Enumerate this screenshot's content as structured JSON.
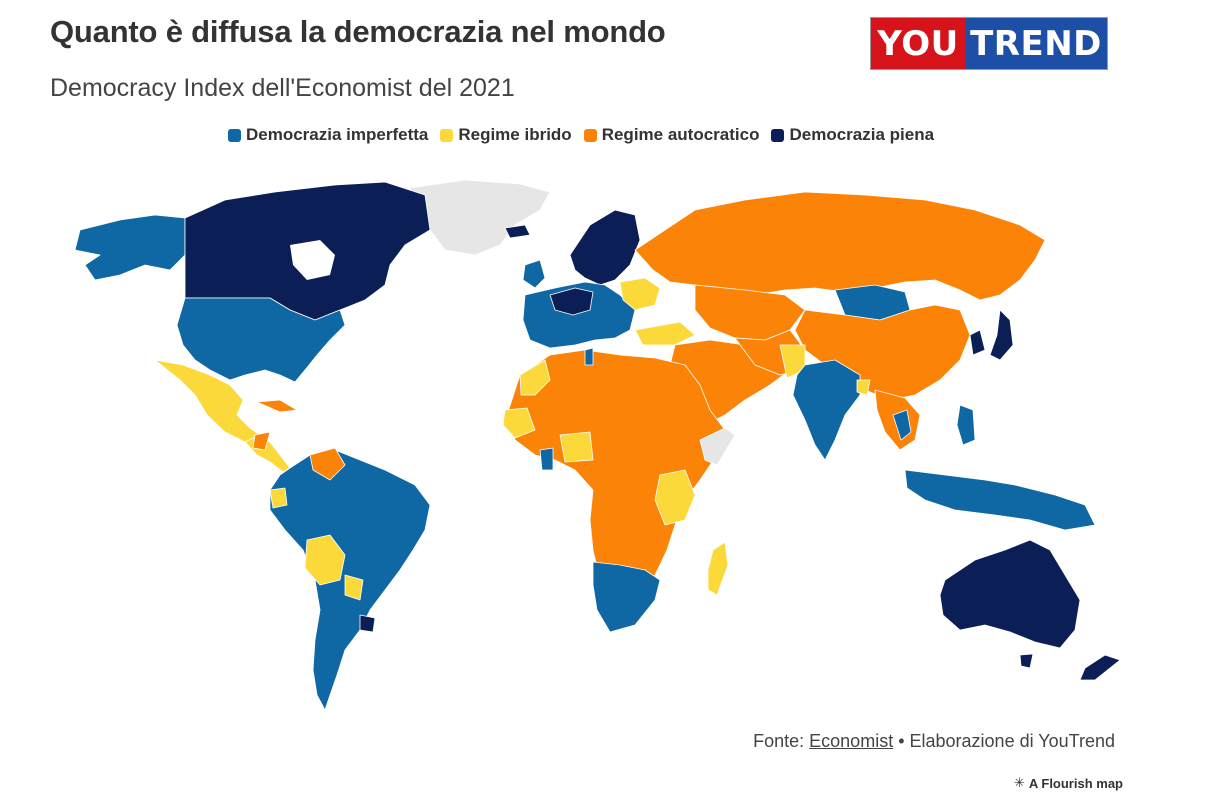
{
  "title": "Quanto è diffusa la democrazia nel mondo",
  "subtitle": "Democracy Index dell'Economist del 2021",
  "logo": {
    "part1": "YOU",
    "part2": "TREND"
  },
  "legend": [
    {
      "label": "Democrazia imperfetta",
      "color": "#0f67a3"
    },
    {
      "label": "Regime ibrido",
      "color": "#fcd93b"
    },
    {
      "label": "Regime autocratico",
      "color": "#fb8307"
    },
    {
      "label": "Democrazia piena",
      "color": "#0c1e56"
    }
  ],
  "colors": {
    "no_data": "#e6e6e6",
    "background": "#ffffff"
  },
  "source": {
    "prefix": "Fonte: ",
    "link": "Economist",
    "suffix": " • Elaborazione di YouTrend"
  },
  "flourish": "A Flourish map"
}
